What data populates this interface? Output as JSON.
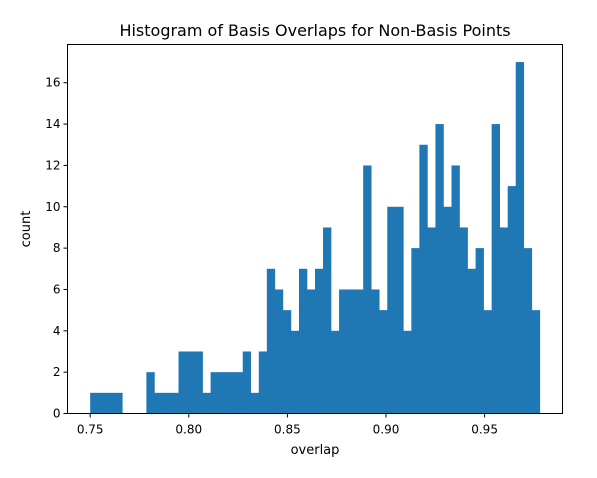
{
  "chart_data": {
    "type": "bar",
    "title": "Histogram of Basis Overlaps for Non-Basis Points",
    "xlabel": "overlap",
    "ylabel": "count",
    "xlim": [
      0.7385,
      0.9895
    ],
    "ylim": [
      0,
      17.85
    ],
    "xticks": [
      0.75,
      0.8,
      0.85,
      0.9,
      0.95
    ],
    "xtick_labels": [
      "0.75",
      "0.80",
      "0.85",
      "0.90",
      "0.95"
    ],
    "yticks": [
      0,
      2,
      4,
      6,
      8,
      10,
      12,
      14,
      16
    ],
    "ytick_labels": [
      "0",
      "2",
      "4",
      "6",
      "8",
      "10",
      "12",
      "14",
      "16"
    ],
    "bin_start": 0.75,
    "bin_end": 0.978,
    "counts": [
      1,
      1,
      1,
      1,
      0,
      0,
      0,
      2,
      1,
      1,
      1,
      3,
      3,
      3,
      1,
      2,
      2,
      2,
      2,
      3,
      1,
      3,
      7,
      6,
      5,
      4,
      7,
      6,
      7,
      9,
      4,
      6,
      6,
      6,
      12,
      6,
      5,
      10,
      10,
      4,
      8,
      13,
      9,
      14,
      10,
      12,
      9,
      7,
      8,
      5,
      14,
      9,
      11,
      17,
      8,
      5
    ],
    "color": "#1f77b4",
    "grid": false
  }
}
